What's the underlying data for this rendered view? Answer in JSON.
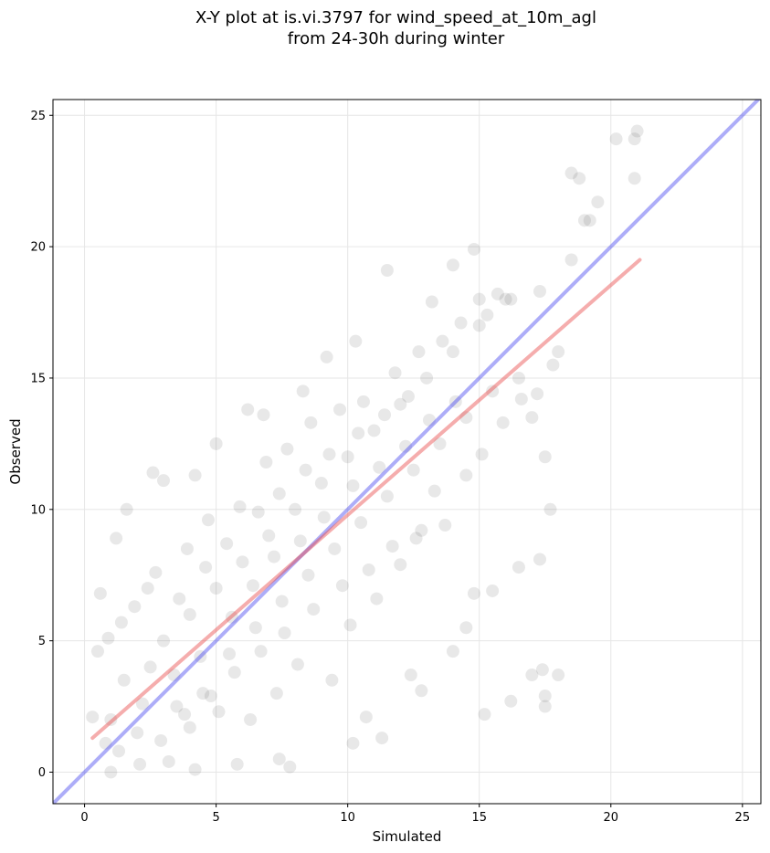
{
  "chart_data": {
    "type": "scatter",
    "title_line1": "X-Y plot at is.vi.3797 for wind_speed_at_10m_agl",
    "title_line2": "from 24-30h during winter",
    "xlabel": "Simulated",
    "ylabel": "Observed",
    "xlim": [
      -1.2,
      25.7
    ],
    "ylim": [
      -1.2,
      25.6
    ],
    "xticks": [
      0,
      5,
      10,
      15,
      20,
      25
    ],
    "yticks": [
      0,
      5,
      10,
      15,
      20,
      25
    ],
    "grid": true,
    "point_color": "#000000",
    "point_alpha": 0.09,
    "one_to_one_line": {
      "color": "#4a4af0",
      "from": [
        -1.2,
        -1.2
      ],
      "to": [
        25.7,
        25.7
      ]
    },
    "regression_line": {
      "color": "#e84a4a",
      "from": [
        0.3,
        1.3
      ],
      "to": [
        21.1,
        19.5
      ]
    },
    "scatter_sample_points": [
      [
        1.0,
        2.0
      ],
      [
        1.5,
        3.5
      ],
      [
        2.0,
        1.5
      ],
      [
        2.5,
        4.0
      ],
      [
        3.0,
        5.0
      ],
      [
        3.5,
        2.5
      ],
      [
        4.0,
        6.0
      ],
      [
        4.5,
        3.0
      ],
      [
        5.0,
        7.0
      ],
      [
        5.5,
        4.5
      ],
      [
        6.0,
        8.0
      ],
      [
        6.5,
        5.5
      ],
      [
        7.0,
        9.0
      ],
      [
        7.5,
        6.5
      ],
      [
        8.0,
        10.0
      ],
      [
        8.5,
        7.5
      ],
      [
        9.0,
        11.0
      ],
      [
        9.5,
        8.5
      ],
      [
        10.0,
        12.0
      ],
      [
        10.5,
        9.5
      ],
      [
        11.0,
        13.0
      ],
      [
        11.5,
        10.5
      ],
      [
        12.0,
        14.0
      ],
      [
        12.5,
        11.5
      ],
      [
        13.0,
        15.0
      ],
      [
        13.5,
        12.5
      ],
      [
        14.0,
        16.0
      ],
      [
        14.5,
        13.5
      ],
      [
        15.0,
        17.0
      ],
      [
        15.5,
        14.5
      ],
      [
        16.0,
        18.0
      ],
      [
        16.5,
        15.0
      ],
      [
        17.0,
        13.5
      ],
      [
        17.5,
        12.0
      ],
      [
        18.0,
        16.0
      ],
      [
        0.5,
        4.6
      ],
      [
        0.6,
        6.8
      ],
      [
        1.2,
        8.9
      ],
      [
        1.6,
        10.0
      ],
      [
        2.6,
        11.4
      ],
      [
        3.0,
        11.1
      ],
      [
        4.2,
        11.3
      ],
      [
        5.0,
        12.5
      ],
      [
        6.2,
        13.8
      ],
      [
        6.8,
        13.6
      ],
      [
        8.3,
        14.5
      ],
      [
        9.2,
        15.8
      ],
      [
        10.3,
        16.4
      ],
      [
        11.5,
        19.1
      ],
      [
        13.2,
        17.9
      ],
      [
        14.0,
        19.3
      ],
      [
        14.8,
        19.9
      ],
      [
        15.0,
        18.0
      ],
      [
        15.7,
        18.2
      ],
      [
        16.2,
        18.0
      ],
      [
        17.3,
        18.3
      ],
      [
        18.5,
        22.8
      ],
      [
        18.8,
        22.6
      ],
      [
        19.5,
        21.7
      ],
      [
        19.2,
        21.0
      ],
      [
        19.0,
        21.0
      ],
      [
        20.2,
        24.1
      ],
      [
        20.9,
        24.1
      ],
      [
        21.0,
        24.4
      ],
      [
        20.9,
        22.6
      ],
      [
        18.5,
        19.5
      ],
      [
        17.8,
        15.5
      ],
      [
        17.7,
        10.0
      ],
      [
        16.5,
        7.8
      ],
      [
        17.3,
        8.1
      ],
      [
        17.0,
        3.7
      ],
      [
        17.4,
        3.9
      ],
      [
        18.0,
        3.7
      ],
      [
        17.5,
        2.5
      ],
      [
        17.5,
        2.9
      ],
      [
        16.2,
        2.7
      ],
      [
        15.2,
        2.2
      ],
      [
        14.5,
        5.5
      ],
      [
        14.0,
        4.6
      ],
      [
        14.8,
        6.8
      ],
      [
        15.5,
        6.9
      ],
      [
        12.8,
        3.1
      ],
      [
        12.4,
        3.7
      ],
      [
        11.3,
        1.3
      ],
      [
        10.7,
        2.1
      ],
      [
        10.2,
        1.1
      ],
      [
        7.8,
        0.2
      ],
      [
        7.4,
        0.5
      ],
      [
        5.8,
        0.3
      ],
      [
        4.2,
        0.1
      ],
      [
        2.1,
        0.3
      ],
      [
        1.0,
        0.0
      ],
      [
        0.3,
        2.1
      ],
      [
        0.8,
        1.1
      ],
      [
        1.3,
        0.8
      ],
      [
        3.2,
        0.4
      ],
      [
        4.0,
        1.7
      ],
      [
        5.1,
        2.3
      ],
      [
        6.3,
        2.0
      ],
      [
        7.3,
        3.0
      ],
      [
        8.1,
        4.1
      ],
      [
        9.4,
        3.5
      ],
      [
        10.1,
        5.6
      ],
      [
        11.1,
        6.6
      ],
      [
        12.0,
        7.9
      ],
      [
        12.8,
        9.2
      ],
      [
        13.3,
        10.7
      ],
      [
        14.5,
        11.3
      ],
      [
        15.1,
        12.1
      ],
      [
        15.9,
        13.3
      ],
      [
        16.6,
        14.2
      ],
      [
        17.2,
        14.4
      ],
      [
        0.9,
        5.1
      ],
      [
        1.9,
        6.3
      ],
      [
        2.7,
        7.6
      ],
      [
        3.9,
        8.5
      ],
      [
        4.7,
        9.6
      ],
      [
        5.9,
        10.1
      ],
      [
        6.9,
        11.8
      ],
      [
        7.7,
        12.3
      ],
      [
        8.6,
        13.3
      ],
      [
        9.7,
        13.8
      ],
      [
        10.6,
        14.1
      ],
      [
        11.8,
        15.2
      ],
      [
        12.7,
        16.0
      ],
      [
        13.6,
        16.4
      ],
      [
        14.3,
        17.1
      ],
      [
        15.3,
        17.4
      ],
      [
        2.2,
        2.6
      ],
      [
        3.4,
        3.7
      ],
      [
        4.4,
        4.4
      ],
      [
        5.6,
        5.9
      ],
      [
        6.4,
        7.1
      ],
      [
        7.2,
        8.2
      ],
      [
        8.2,
        8.8
      ],
      [
        9.1,
        9.7
      ],
      [
        10.2,
        10.9
      ],
      [
        11.2,
        11.6
      ],
      [
        12.2,
        12.4
      ],
      [
        13.1,
        13.4
      ],
      [
        14.1,
        14.1
      ],
      [
        2.9,
        1.2
      ],
      [
        3.8,
        2.2
      ],
      [
        4.8,
        2.9
      ],
      [
        5.7,
        3.8
      ],
      [
        6.7,
        4.6
      ],
      [
        7.6,
        5.3
      ],
      [
        8.7,
        6.2
      ],
      [
        9.8,
        7.1
      ],
      [
        10.8,
        7.7
      ],
      [
        11.7,
        8.6
      ],
      [
        12.6,
        8.9
      ],
      [
        13.7,
        9.4
      ],
      [
        1.4,
        5.7
      ],
      [
        2.4,
        7.0
      ],
      [
        3.6,
        6.6
      ],
      [
        4.6,
        7.8
      ],
      [
        5.4,
        8.7
      ],
      [
        6.6,
        9.9
      ],
      [
        7.4,
        10.6
      ],
      [
        8.4,
        11.5
      ],
      [
        9.3,
        12.1
      ],
      [
        10.4,
        12.9
      ],
      [
        11.4,
        13.6
      ],
      [
        12.3,
        14.3
      ]
    ]
  }
}
